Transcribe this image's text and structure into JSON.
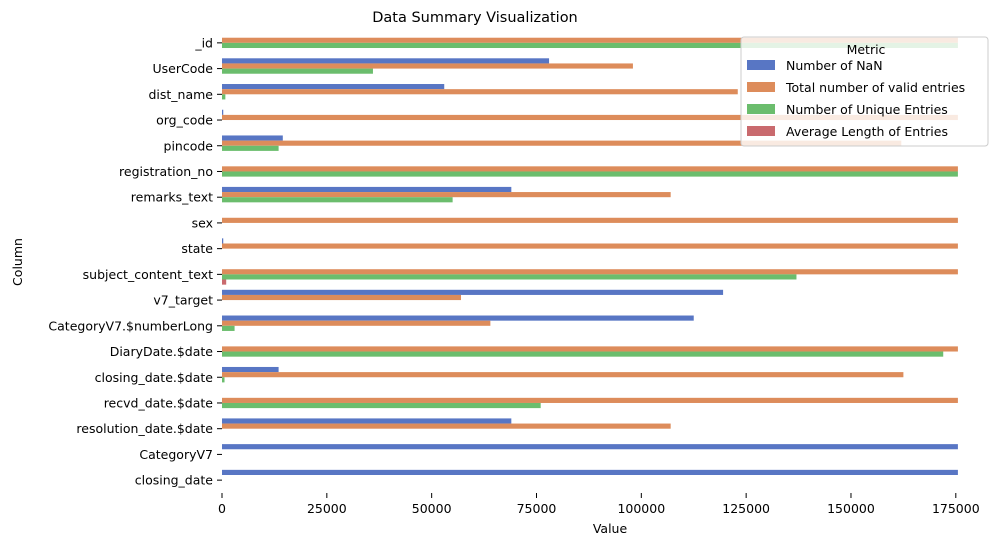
{
  "chart_data": {
    "type": "bar",
    "orientation": "horizontal",
    "title": "Data Summary Visualization",
    "xlabel": "Value",
    "ylabel": "Column",
    "xlim": [
      0,
      176000
    ],
    "xticks": [
      0,
      25000,
      50000,
      75000,
      100000,
      125000,
      150000,
      175000
    ],
    "xtick_labels": [
      "0",
      "25000",
      "50000",
      "75000",
      "100000",
      "125000",
      "150000",
      "175000"
    ],
    "categories": [
      "_id",
      "UserCode",
      "dist_name",
      "org_code",
      "pincode",
      "registration_no",
      "remarks_text",
      "sex",
      "state",
      "subject_content_text",
      "v7_target",
      "CategoryV7.$numberLong",
      "DiaryDate.$date",
      "closing_date.$date",
      "recvd_date.$date",
      "resolution_date.$date",
      "CategoryV7",
      "closing_date"
    ],
    "series": [
      {
        "name": "Number of NaN",
        "color": "#5876c4",
        "values": [
          0,
          78000,
          53000,
          300,
          14500,
          0,
          69000,
          0,
          300,
          0,
          119500,
          112500,
          0,
          13500,
          0,
          69000,
          175500,
          175500
        ]
      },
      {
        "name": "Total number of valid entries",
        "color": "#dd8c5b",
        "values": [
          175500,
          98000,
          123000,
          175500,
          162000,
          175500,
          107000,
          175500,
          175500,
          175500,
          57000,
          64000,
          175500,
          162500,
          175500,
          107000,
          0,
          0
        ]
      },
      {
        "name": "Number of Unique Entries",
        "color": "#6bbd6d",
        "values": [
          175500,
          36000,
          800,
          0,
          13500,
          175500,
          55000,
          0,
          0,
          137000,
          0,
          3000,
          172000,
          600,
          76000,
          0,
          0,
          0
        ]
      },
      {
        "name": "Average Length of Entries",
        "color": "#c96a6e",
        "values": [
          0,
          0,
          0,
          0,
          0,
          0,
          0,
          0,
          0,
          1000,
          0,
          0,
          0,
          0,
          0,
          0,
          0,
          0
        ]
      }
    ],
    "legend": {
      "title": "Metric",
      "position": "top-right",
      "entries": [
        "Number of NaN",
        "Total number of valid entries",
        "Number of Unique Entries",
        "Average Length of Entries"
      ]
    },
    "grid": false
  }
}
